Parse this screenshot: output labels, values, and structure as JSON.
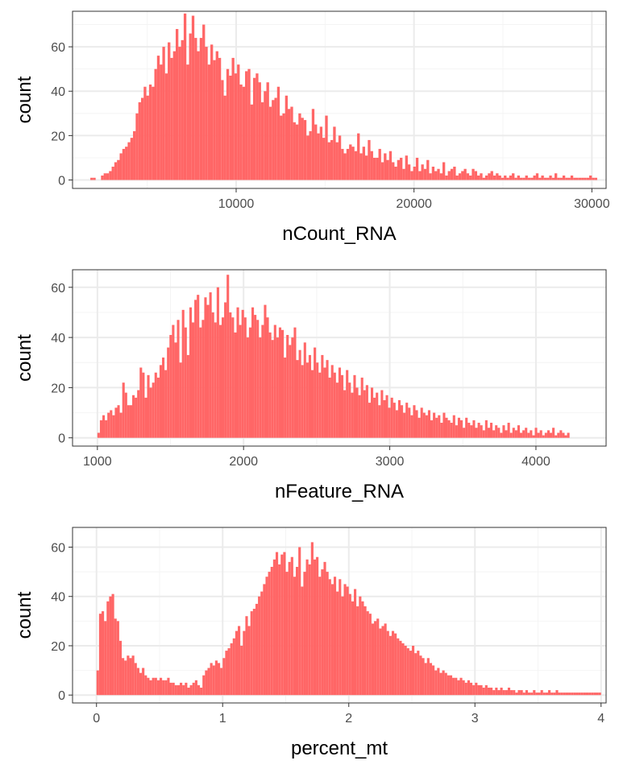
{
  "colors": {
    "bar": "#ff6666",
    "panel_border": "#333333",
    "grid_major": "#ebebeb",
    "grid_minor": "#f4f4f4",
    "background": "#ffffff"
  },
  "chart_data": [
    {
      "type": "bar",
      "xlabel": "nCount_RNA",
      "ylabel": "count",
      "xlim": [
        800,
        30800
      ],
      "ylim": [
        -3.8,
        76
      ],
      "xticks": [
        10000,
        20000,
        30000
      ],
      "xtick_labels": [
        "10000",
        "20000",
        "30000"
      ],
      "yticks": [
        0,
        20,
        40,
        60
      ],
      "ytick_labels": [
        "0",
        "20",
        "40",
        "60"
      ],
      "grid": true,
      "bin_start": 1800,
      "bin_width": 150,
      "values": [
        1,
        1,
        0,
        0,
        2,
        3,
        3,
        4,
        6,
        8,
        9,
        12,
        14,
        15,
        17,
        19,
        22,
        30,
        35,
        37,
        42,
        38,
        43,
        42,
        50,
        56,
        52,
        60,
        48,
        62,
        55,
        58,
        68,
        60,
        63,
        75,
        52,
        66,
        74,
        64,
        58,
        64,
        70,
        60,
        52,
        61,
        54,
        58,
        55,
        45,
        38,
        50,
        47,
        55,
        48,
        52,
        43,
        42,
        49,
        50,
        34,
        46,
        48,
        44,
        35,
        40,
        44,
        33,
        36,
        37,
        42,
        29,
        30,
        38,
        32,
        33,
        26,
        25,
        30,
        28,
        27,
        20,
        22,
        32,
        25,
        21,
        24,
        19,
        29,
        17,
        18,
        24,
        17,
        20,
        14,
        12,
        14,
        16,
        15,
        13,
        21,
        12,
        15,
        11,
        18,
        13,
        10,
        10,
        14,
        8,
        12,
        9,
        13,
        8,
        6,
        9,
        10,
        5,
        11,
        7,
        4,
        6,
        10,
        4,
        7,
        5,
        9,
        3,
        6,
        4,
        5,
        3,
        8,
        2,
        4,
        5,
        6,
        2,
        3,
        4,
        5,
        3,
        2,
        5,
        4,
        2,
        3,
        1,
        2,
        3,
        4,
        2,
        3,
        2,
        1,
        2,
        1,
        2,
        3,
        1,
        2,
        1,
        1,
        2,
        1,
        1,
        2,
        3,
        1,
        2,
        1,
        1,
        2,
        1,
        3,
        1,
        1,
        2,
        1,
        1,
        2,
        1,
        1,
        1,
        1,
        1,
        1,
        2,
        1,
        1
      ]
    },
    {
      "type": "bar",
      "xlabel": "nFeature_RNA",
      "ylabel": "count",
      "xlim": [
        830,
        4480
      ],
      "ylim": [
        -3.3,
        67
      ],
      "xticks": [
        1000,
        2000,
        3000,
        4000
      ],
      "xtick_labels": [
        "1000",
        "2000",
        "3000",
        "4000"
      ],
      "yticks": [
        0,
        20,
        40,
        60
      ],
      "ytick_labels": [
        "0",
        "20",
        "40",
        "60"
      ],
      "grid": true,
      "bin_start": 1000,
      "bin_width": 17,
      "values": [
        2,
        7,
        9,
        7,
        10,
        11,
        9,
        12,
        13,
        10,
        22,
        18,
        13,
        13,
        17,
        16,
        19,
        28,
        26,
        16,
        25,
        20,
        22,
        26,
        24,
        29,
        32,
        27,
        36,
        41,
        45,
        38,
        47,
        30,
        51,
        44,
        33,
        52,
        46,
        55,
        57,
        44,
        47,
        56,
        53,
        58,
        50,
        46,
        60,
        45,
        48,
        54,
        65,
        50,
        48,
        42,
        52,
        45,
        51,
        48,
        40,
        44,
        52,
        49,
        47,
        40,
        45,
        53,
        48,
        42,
        39,
        45,
        40,
        44,
        43,
        32,
        41,
        37,
        40,
        44,
        31,
        35,
        29,
        38,
        30,
        33,
        27,
        36,
        30,
        26,
        33,
        28,
        31,
        24,
        29,
        26,
        22,
        28,
        25,
        19,
        27,
        22,
        18,
        25,
        20,
        17,
        24,
        19,
        21,
        14,
        20,
        16,
        18,
        13,
        19,
        15,
        17,
        12,
        16,
        14,
        11,
        15,
        13,
        10,
        14,
        12,
        9,
        13,
        11,
        8,
        12,
        10,
        9,
        11,
        7,
        10,
        8,
        9,
        6,
        10,
        8,
        7,
        6,
        9,
        5,
        8,
        7,
        4,
        8,
        6,
        5,
        7,
        4,
        6,
        5,
        3,
        7,
        4,
        6,
        3,
        5,
        4,
        2,
        5,
        3,
        6,
        2,
        4,
        3,
        5,
        2,
        3,
        4,
        2,
        3,
        1,
        4,
        2,
        3,
        1,
        2,
        3,
        2,
        4,
        1,
        2,
        3,
        2,
        1,
        2
      ]
    },
    {
      "type": "bar",
      "xlabel": "percent_mt",
      "ylabel": "count",
      "xlim": [
        -0.19,
        4.04
      ],
      "ylim": [
        -3.2,
        68
      ],
      "xticks": [
        0,
        1,
        2,
        3,
        4
      ],
      "xtick_labels": [
        "0",
        "1",
        "2",
        "3",
        "4"
      ],
      "yticks": [
        0,
        20,
        40,
        60
      ],
      "ytick_labels": [
        "0",
        "20",
        "40",
        "60"
      ],
      "grid": true,
      "bin_start": 0,
      "bin_width": 0.02,
      "values": [
        10,
        33,
        34,
        30,
        38,
        40,
        41,
        31,
        30,
        22,
        15,
        14,
        16,
        15,
        16,
        13,
        11,
        9,
        11,
        8,
        7,
        6,
        7,
        7,
        6,
        7,
        6,
        6,
        7,
        5,
        5,
        4,
        4,
        5,
        4,
        5,
        3,
        4,
        5,
        6,
        4,
        3,
        8,
        10,
        11,
        13,
        12,
        14,
        13,
        11,
        15,
        18,
        19,
        21,
        23,
        26,
        28,
        20,
        26,
        32,
        28,
        34,
        35,
        37,
        40,
        42,
        45,
        48,
        50,
        52,
        55,
        58,
        53,
        57,
        58,
        50,
        54,
        56,
        48,
        52,
        60,
        44,
        50,
        55,
        53,
        62,
        55,
        56,
        48,
        51,
        54,
        50,
        47,
        45,
        48,
        42,
        47,
        40,
        45,
        44,
        41,
        38,
        43,
        36,
        40,
        38,
        36,
        34,
        33,
        29,
        30,
        31,
        27,
        28,
        29,
        26,
        24,
        26,
        25,
        23,
        22,
        21,
        20,
        19,
        18,
        20,
        17,
        18,
        16,
        15,
        13,
        15,
        13,
        12,
        10,
        11,
        9,
        10,
        9,
        8,
        8,
        7,
        7,
        6,
        7,
        6,
        5,
        6,
        5,
        4,
        5,
        4,
        4,
        3,
        4,
        3,
        3,
        2,
        3,
        2,
        3,
        2,
        2,
        3,
        2,
        2,
        1,
        2,
        2,
        1,
        2,
        1,
        1,
        2,
        1,
        1,
        2,
        1,
        1,
        2,
        1,
        1,
        2,
        1,
        1,
        1,
        1,
        1,
        1,
        1,
        1,
        1,
        1,
        1,
        1,
        1,
        1,
        1,
        1,
        1
      ]
    }
  ]
}
